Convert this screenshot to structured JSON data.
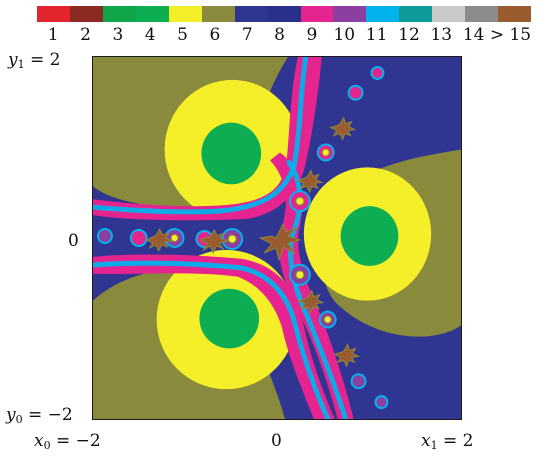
{
  "legend": {
    "items": [
      {
        "label": "1",
        "color": "#e3262e"
      },
      {
        "label": "2",
        "color": "#8b2a20"
      },
      {
        "label": "3",
        "color": "#11a64a"
      },
      {
        "label": "4",
        "color": "#0cae51"
      },
      {
        "label": "5",
        "color": "#f5ef2a"
      },
      {
        "label": "6",
        "color": "#8a8a3d"
      },
      {
        "label": "7",
        "color": "#2f3591"
      },
      {
        "label": "8",
        "color": "#2a2f8a"
      },
      {
        "label": "9",
        "color": "#e6248f"
      },
      {
        "label": "10",
        "color": "#8a3fa1"
      },
      {
        "label": "11",
        "color": "#00b3ec"
      },
      {
        "label": "12",
        "color": "#0f9a9a"
      },
      {
        "label": "13",
        "color": "#c9c9c9"
      },
      {
        "label": "14",
        "color": "#8c8c8c"
      },
      {
        "label": "> 15",
        "color": "#9a5b2e"
      }
    ]
  },
  "axes": {
    "y_top_var": "y",
    "y_top_sub": "1",
    "y_top_value": " = 2",
    "y_mid_value": "0",
    "y_bottom_var": "y",
    "y_bottom_sub": "0",
    "y_bottom_value": " = −2",
    "x_left_var": "x",
    "x_left_sub": "0",
    "x_left_value": " = −2",
    "x_mid_value": "0",
    "x_right_var": "x",
    "x_right_sub": "1",
    "x_right_value": " = 2"
  },
  "fractal": {
    "background_color": "#2f3591",
    "olive_color": "#8a8a3d",
    "yellow_color": "#f5ef2a",
    "green_color": "#0cae51",
    "pink_color": "#e6248f",
    "cyan_color": "#00b3ec",
    "purple_color": "#8a3fa1",
    "brown_color": "#9a5b2e"
  }
}
